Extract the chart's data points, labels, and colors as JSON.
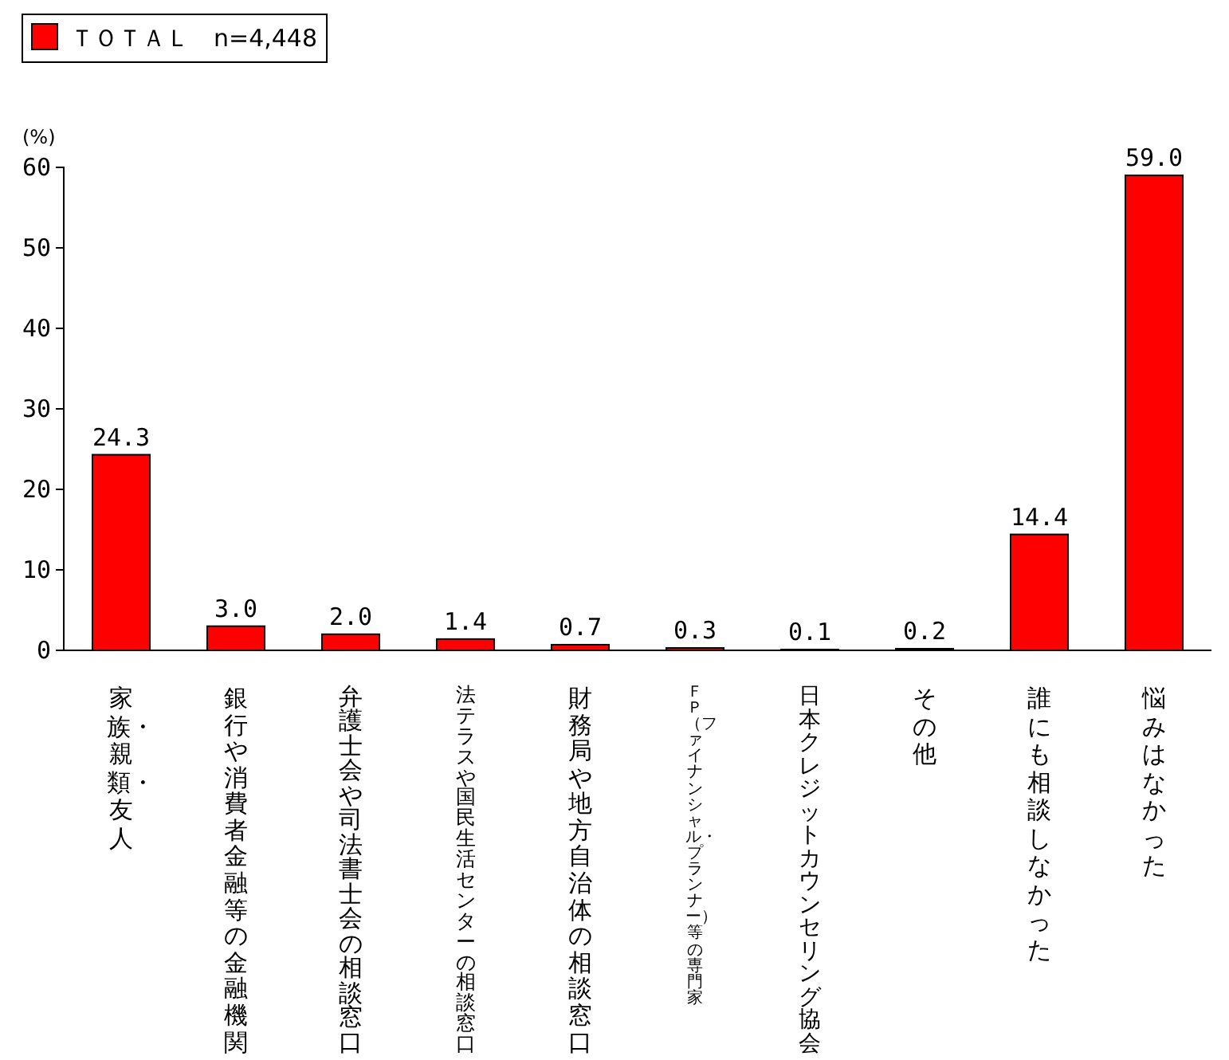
{
  "chart_data": {
    "type": "bar",
    "ylabel": "(%)",
    "categories": [
      "家族・親類・友人",
      "銀行や消費者金融等の金融機関",
      "弁護士会や司法書士会の相談窓口",
      "法テラスや国民生活センターの相談窓口",
      "財務局や地方自治体の相談窓口",
      "ＦＰ（ファイナンシャル・プランナー）等の専門家",
      "日本クレジットカウンセリング協会",
      "その他",
      "誰にも相談しなかった",
      "悩みはなかった"
    ],
    "series": [
      {
        "name": "ＴＯＴＡＬ　n=4,448",
        "color": "#ff0000",
        "values": [
          24.3,
          3.0,
          2.0,
          1.4,
          0.7,
          0.3,
          0.1,
          0.2,
          14.4,
          59.0
        ],
        "value_labels": [
          "24.3",
          "3.0",
          "2.0",
          "1.4",
          "0.7",
          "0.3",
          "0.1",
          "0.2",
          "14.4",
          "59.0"
        ]
      }
    ],
    "ylim": [
      0,
      60
    ],
    "yticks": [
      0,
      10,
      20,
      30,
      40,
      50,
      60
    ],
    "legend": "top left",
    "grid": false
  }
}
